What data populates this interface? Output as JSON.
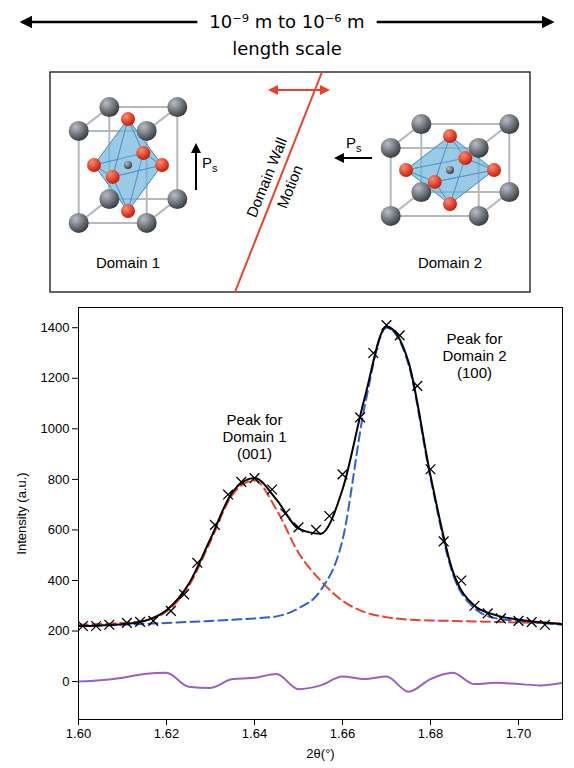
{
  "diagram": {
    "scale": {
      "text": "10⁻⁹ m to 10⁻⁶ m",
      "subtext": "length scale"
    },
    "domains": [
      {
        "label": "Domain 1",
        "polarization": {
          "symbol": "P",
          "subscript": "s"
        },
        "direction": "up"
      },
      {
        "label": "Domain 2",
        "polarization": {
          "symbol": "P",
          "subscript": "s"
        },
        "direction": "left"
      }
    ],
    "wall": {
      "label": [
        "Domain Wall",
        "Motion"
      ]
    }
  },
  "chart_data": {
    "type": "line",
    "x_label": "2θ(°)",
    "y_label": "Intensity (a.u.)",
    "xlim": [
      1.6,
      1.71
    ],
    "xticks": [
      {
        "value": 1.6,
        "label": "1.60"
      },
      1.62,
      1.64,
      1.66,
      1.68,
      {
        "value": 1.7,
        "label": "1.70"
      }
    ],
    "ylim": [
      -150,
      1480
    ],
    "yticks": [
      0,
      200,
      400,
      600,
      800,
      1000,
      1200,
      1400
    ],
    "grid": false,
    "x": [
      1.6,
      1.605,
      1.61,
      1.615,
      1.62,
      1.625,
      1.63,
      1.635,
      1.64,
      1.645,
      1.65,
      1.655,
      1.66,
      1.665,
      1.67,
      1.675,
      1.68,
      1.685,
      1.69,
      1.695,
      1.7,
      1.705,
      1.71
    ],
    "series": [
      {
        "type": "line",
        "color": "#e8412e",
        "line_style": "dashed",
        "values": [
          225,
          228,
          232,
          241,
          277,
          376,
          555,
          740,
          796,
          680,
          510,
          400,
          320,
          275,
          255,
          245,
          242,
          240,
          238,
          236,
          234,
          232,
          230
        ]
      },
      {
        "type": "line",
        "color": "#2f5fd0",
        "line_style": "dashed",
        "values": [
          220,
          222,
          225,
          228,
          232,
          236,
          240,
          245,
          250,
          258,
          290,
          360,
          560,
          1085,
          1400,
          1255,
          805,
          430,
          290,
          250,
          240,
          232,
          225
        ]
      },
      {
        "type": "line",
        "color": "#000000",
        "line_style": "solid",
        "values": [
          220,
          222,
          227,
          240,
          282,
          385,
          565,
          750,
          805,
          720,
          605,
          585,
          760,
          1120,
          1405,
          1265,
          815,
          440,
          300,
          262,
          245,
          235,
          228
        ]
      },
      {
        "type": "scatter",
        "marker": "x",
        "color": "#000000",
        "x": [
          1.601,
          1.604,
          1.607,
          1.611,
          1.614,
          1.617,
          1.621,
          1.624,
          1.627,
          1.631,
          1.634,
          1.637,
          1.64,
          1.644,
          1.647,
          1.65,
          1.654,
          1.657,
          1.66,
          1.664,
          1.667,
          1.67,
          1.673,
          1.677,
          1.68,
          1.683,
          1.687,
          1.69,
          1.693,
          1.696,
          1.7,
          1.703,
          1.706
        ],
        "values": [
          220,
          220,
          225,
          232,
          236,
          240,
          280,
          345,
          470,
          620,
          740,
          790,
          805,
          760,
          665,
          610,
          600,
          655,
          820,
          1045,
          1300,
          1410,
          1370,
          1170,
          840,
          555,
          400,
          300,
          270,
          250,
          240,
          235,
          225
        ]
      },
      {
        "type": "line",
        "color": "#9b5fc0",
        "line_style": "solid",
        "values": [
          0,
          5,
          15,
          30,
          35,
          -20,
          -25,
          10,
          15,
          30,
          -30,
          -15,
          20,
          10,
          20,
          -40,
          10,
          35,
          -10,
          -5,
          -10,
          -15,
          -5
        ]
      }
    ],
    "annotations": [
      {
        "text": "Peak for\nDomain 1\n(001)",
        "x": 1.64,
        "y": 880
      },
      {
        "text": "Peak for\nDomain 2\n(100)",
        "x": 1.69,
        "y": 1200
      }
    ]
  }
}
